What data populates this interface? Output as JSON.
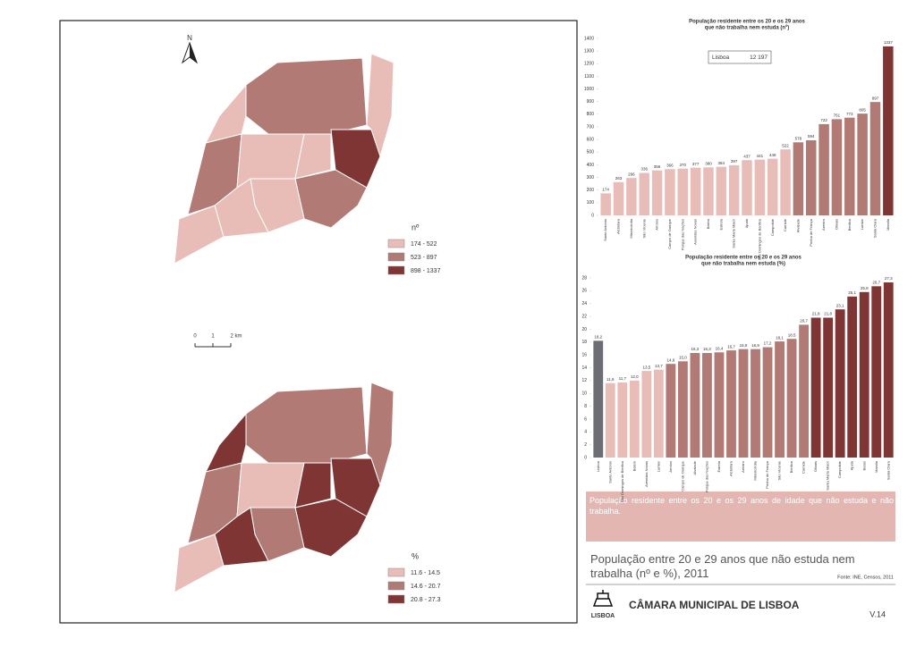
{
  "chart_data": [
    {
      "type": "bar",
      "title": "População residente entre os 20 e os 29 anos",
      "subtitle": "que não trabalha nem estuda (nº)",
      "annotation": {
        "name": "Lisboa",
        "value": "12 197"
      },
      "categories": [
        "Santo António",
        "Alcântara",
        "Misericórdia",
        "São Vicente",
        "Arroios",
        "Campo de Ourique",
        "Parque das Nações",
        "Avenidas Novas",
        "Belém",
        "Estrela",
        "Santa Maria Maior",
        "Ajuda",
        "São Domingos de Benfica",
        "Campolide",
        "Carnide",
        "Alvalade",
        "Penha de França",
        "Areeiro",
        "Olivais",
        "Benfica",
        "Lumiar",
        "Santa Clara",
        "Marvila"
      ],
      "values": [
        174,
        263,
        296,
        336,
        356,
        366,
        370,
        377,
        380,
        384,
        397,
        437,
        441,
        448,
        522,
        578,
        594,
        722,
        761,
        773,
        805,
        897,
        1337
      ],
      "colors": [
        "#e8bdb8",
        "#e8bdb8",
        "#e8bdb8",
        "#e8bdb8",
        "#e8bdb8",
        "#e8bdb8",
        "#e8bdb8",
        "#e8bdb8",
        "#e8bdb8",
        "#e8bdb8",
        "#e8bdb8",
        "#e8bdb8",
        "#e8bdb8",
        "#e8bdb8",
        "#e8bdb8",
        "#b27a75",
        "#b27a75",
        "#b27a75",
        "#b27a75",
        "#b27a75",
        "#b27a75",
        "#b27a75",
        "#7f3533"
      ],
      "ylim": [
        0,
        1400
      ],
      "yticks": [
        0,
        100,
        200,
        300,
        400,
        500,
        600,
        700,
        800,
        900,
        1000,
        1100,
        1200,
        1300,
        1400
      ]
    },
    {
      "type": "bar",
      "title": "População residente entre os 20 e os 29 anos",
      "subtitle": "que não trabalha nem estuda (%)",
      "categories": [
        "Lisboa",
        "Santo António",
        "São Domingos de Benfica",
        "Belém",
        "Avenidas Novas",
        "Lumiar",
        "Arroios",
        "Campo de Ourique",
        "Alvalade",
        "Parque das Nações",
        "Estrela",
        "Alcântara",
        "Areeiro",
        "Misericórdia",
        "Penha de França",
        "São Vicente",
        "Benfica",
        "Carnide",
        "Olivais",
        "Santa Maria Maior",
        "Campolide",
        "Ajuda",
        "Beato",
        "Marvila",
        "Santa Clara"
      ],
      "values": [
        18.2,
        11.6,
        11.7,
        12.0,
        13.5,
        13.7,
        14.6,
        15.0,
        16.3,
        16.3,
        16.4,
        16.7,
        16.9,
        16.9,
        17.2,
        18.1,
        18.5,
        20.7,
        21.8,
        21.8,
        23.1,
        25.1,
        25.8,
        26.7,
        27.3
      ],
      "value_labels": [
        "18,2",
        "11,6",
        "11,7",
        "12,0",
        "13,5",
        "13,7",
        "14,6",
        "15,0",
        "16,3",
        "16,3",
        "16,4",
        "16,7",
        "16,9",
        "16,9",
        "17,2",
        "18,1",
        "18,5",
        "20,7",
        "21,8",
        "21,8",
        "23,1",
        "25,1",
        "25,8",
        "26,7",
        "27,3"
      ],
      "colors": [
        "#6d6d75",
        "#e8bdb8",
        "#e8bdb8",
        "#e8bdb8",
        "#e8bdb8",
        "#e8bdb8",
        "#b27a75",
        "#b27a75",
        "#b27a75",
        "#b27a75",
        "#b27a75",
        "#b27a75",
        "#b27a75",
        "#b27a75",
        "#b27a75",
        "#b27a75",
        "#b27a75",
        "#b27a75",
        "#7f3533",
        "#7f3533",
        "#7f3533",
        "#7f3533",
        "#7f3533",
        "#7f3533",
        "#7f3533"
      ],
      "ylim": [
        0,
        28
      ],
      "yticks": [
        0,
        2,
        4,
        6,
        8,
        10,
        12,
        14,
        16,
        18,
        20,
        22,
        24,
        26,
        28
      ]
    }
  ],
  "maps": [
    {
      "legend_title": "nº",
      "classes": [
        {
          "label": "174 - 522",
          "color": "#e8bdb8"
        },
        {
          "label": "523 - 897",
          "color": "#b27a75"
        },
        {
          "label": "898 - 1337",
          "color": "#7f3533"
        }
      ]
    },
    {
      "legend_title": "%",
      "classes": [
        {
          "label": "11.6 - 14.5",
          "color": "#e8bdb8"
        },
        {
          "label": "14.6 - 20.7",
          "color": "#b27a75"
        },
        {
          "label": "20.8 - 27.3",
          "color": "#7f3533"
        }
      ]
    }
  ],
  "north": "N",
  "scale": [
    "0",
    "1",
    "2 km"
  ],
  "description": "População residente entre os 20 e os 29 anos de idade que não estuda e não trabalha.",
  "footer": {
    "title": "População entre 20 e 29 anos que não estuda nem trabalha (nº e %), 2011",
    "source": "Fonte: INE, Censos, 2011",
    "org": "CÂMARA MUNICIPAL DE LISBOA",
    "logo": "LISBOA",
    "page": "V.14"
  }
}
